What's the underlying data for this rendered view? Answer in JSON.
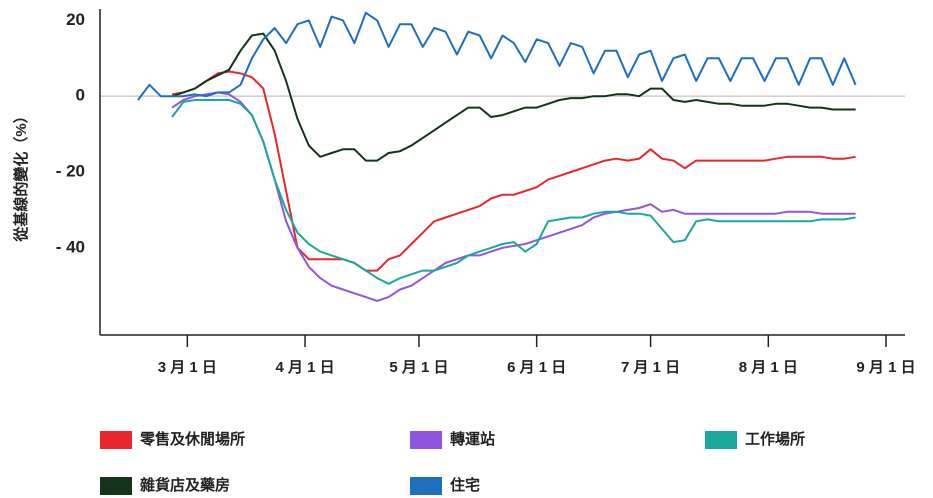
{
  "chart_data": {
    "type": "line",
    "y_label": "從基線的變化（%）",
    "x": [
      48,
      51,
      54,
      57,
      60,
      63,
      66,
      69,
      72,
      75,
      78,
      81,
      84,
      87,
      90,
      93,
      96,
      99,
      102,
      105,
      108,
      111,
      114,
      117,
      120,
      123,
      126,
      129,
      132,
      135,
      138,
      141,
      144,
      147,
      150,
      153,
      156,
      159,
      162,
      165,
      168,
      171,
      174,
      177,
      180,
      183,
      186,
      189,
      192,
      195,
      198,
      201,
      204,
      207,
      210,
      213,
      216,
      219,
      222,
      225,
      228,
      231,
      234,
      237
    ],
    "xlim": [
      38,
      250
    ],
    "xticks": [
      {
        "value": 61,
        "label": "3 月 1 日"
      },
      {
        "value": 92,
        "label": "4 月 1 日"
      },
      {
        "value": 122,
        "label": "5 月 1 日"
      },
      {
        "value": 153,
        "label": "6 月 1 日"
      },
      {
        "value": 183,
        "label": "7 月 1 日"
      },
      {
        "value": 214,
        "label": "8 月 1 日"
      },
      {
        "value": 245,
        "label": "9 月 1 日"
      }
    ],
    "ylim": [
      -63,
      23
    ],
    "yticks": [
      20,
      0,
      {
        "value": -20,
        "label": "- 20"
      },
      {
        "value": -40,
        "label": "- 40"
      }
    ],
    "reference_line": 0,
    "series": [
      {
        "name": "零售及休閒場所",
        "color": "#e8262b",
        "values": [
          null,
          null,
          null,
          0.5,
          1,
          2,
          4,
          6,
          6.5,
          6,
          5,
          2,
          -10,
          -25,
          -40,
          -43,
          -43,
          -43,
          -43,
          -44,
          -46,
          -46,
          -43,
          -42,
          -39,
          -36,
          -33,
          -32,
          -31,
          -30,
          -29,
          -27,
          -26,
          -26,
          -25,
          -24,
          -22,
          -21,
          -20,
          -19,
          -18,
          -17,
          -16.5,
          -17,
          -16.5,
          -14,
          -16.5,
          -17,
          -19,
          -17,
          -17,
          -17,
          -17,
          -17,
          -17,
          -17,
          -16.5,
          -16,
          -16,
          -16,
          -16,
          -16.5,
          -16.5,
          -16
        ]
      },
      {
        "name": "轉運站",
        "color": "#9155e0",
        "values": [
          null,
          null,
          null,
          -3,
          -1,
          0,
          0.5,
          1,
          0.5,
          -1.5,
          -5,
          -12,
          -22,
          -33,
          -40,
          -45,
          -48,
          -50,
          -51,
          -52,
          -53,
          -54,
          -53,
          -51,
          -50,
          -48,
          -46,
          -44,
          -43,
          -42,
          -42,
          -41,
          -40,
          -39.5,
          -39,
          -38,
          -37,
          -36,
          -35,
          -34,
          -32,
          -31,
          -30.5,
          -30,
          -29.5,
          -28.5,
          -30.5,
          -30,
          -31,
          -31,
          -31,
          -31,
          -31,
          -31,
          -31,
          -31,
          -31,
          -30.5,
          -30.5,
          -30.5,
          -31,
          -31,
          -31,
          -31
        ]
      },
      {
        "name": "工作場所",
        "color": "#1aa89c",
        "values": [
          null,
          null,
          null,
          -5.5,
          -1.5,
          -1,
          -1,
          -1,
          -1,
          -2,
          -5,
          -12,
          -22,
          -30,
          -36,
          -39,
          -41,
          -42,
          -43,
          -44,
          -46,
          -48,
          -49.5,
          -48,
          -47,
          -46,
          -46,
          -45,
          -44,
          -42,
          -41,
          -40,
          -39,
          -38.5,
          -41,
          -39,
          -33,
          -32.5,
          -32,
          -32,
          -31,
          -30.5,
          -30.5,
          -31,
          -31,
          -31.5,
          -35,
          -38.5,
          -38,
          -33,
          -32.5,
          -33,
          -33,
          -33,
          -33,
          -33,
          -33,
          -33,
          -33,
          -33,
          -32.5,
          -32.5,
          -32.5,
          -32
        ]
      },
      {
        "name": "雜貨店及藥房",
        "color": "#14351a",
        "values": [
          null,
          null,
          null,
          0,
          1,
          2,
          4,
          5.5,
          7,
          12,
          16,
          16.5,
          12,
          4,
          -6,
          -13,
          -16,
          -15,
          -14,
          -14,
          -17,
          -17,
          -15,
          -14.5,
          -13,
          -11,
          -9,
          -7,
          -5,
          -3,
          -3,
          -5.5,
          -5,
          -4,
          -3,
          -3,
          -2,
          -1,
          -0.5,
          -0.5,
          0,
          0,
          0.5,
          0.5,
          0,
          2,
          2,
          -1,
          -1.5,
          -1,
          -1.5,
          -2,
          -2,
          -2.5,
          -2.5,
          -2.5,
          -2,
          -2,
          -2.5,
          -3,
          -3,
          -3.5,
          -3.5,
          -3.5
        ]
      },
      {
        "name": "住宅",
        "color": "#1f6fbf",
        "values": [
          -1,
          3,
          0,
          0,
          0,
          0.5,
          0,
          1,
          1,
          3,
          10,
          15,
          18,
          14,
          19,
          20,
          13,
          21,
          20,
          14,
          22,
          20,
          13,
          19,
          19,
          13,
          18,
          17,
          11,
          17,
          16,
          10,
          16,
          14,
          9,
          15,
          14,
          8,
          14,
          13,
          6,
          12,
          12,
          5,
          11,
          12,
          4,
          10,
          11,
          4,
          10,
          10,
          4,
          10,
          10,
          4,
          10,
          10,
          3,
          10,
          10,
          3,
          10,
          3
        ]
      }
    ]
  }
}
